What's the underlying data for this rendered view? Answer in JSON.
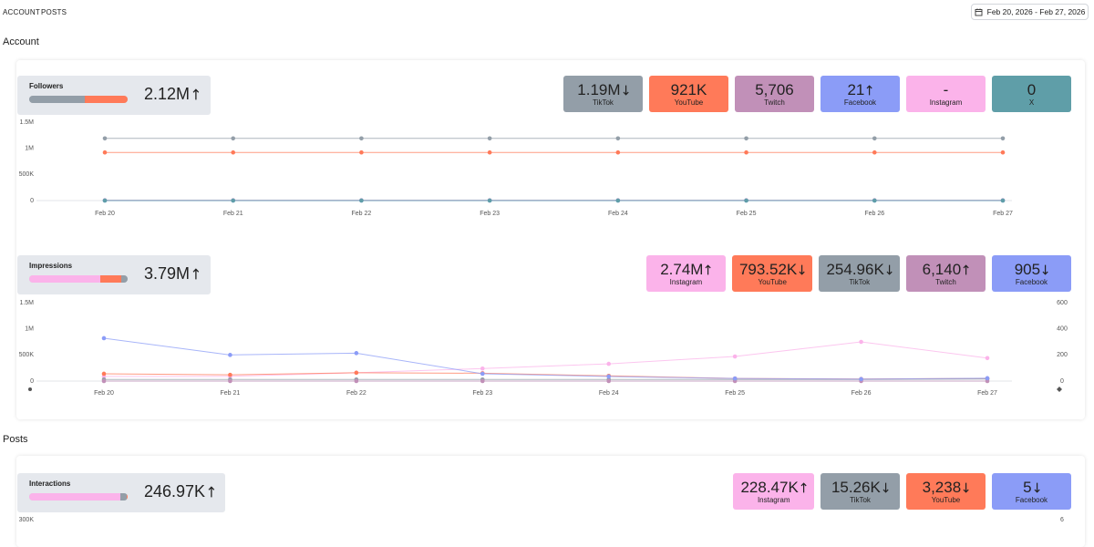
{
  "nav": {
    "tabs": [
      "ACCOUNT",
      "POSTS"
    ],
    "date_range": "Feb 20, 2026 - Feb 27, 2026"
  },
  "sections": [
    {
      "title": "Account",
      "panels": [
        {
          "metric": "Followers",
          "total": "2.12M",
          "trend": "up",
          "tiles": [
            {
              "platform": "TikTok",
              "value": 1190000,
              "label": "1.19M",
              "trend": "down",
              "color": "#939ea8",
              "values": [
                1190000,
                1190000,
                1190000,
                1190000,
                1190000,
                1190000,
                1190000,
                1190000
              ]
            },
            {
              "platform": "YouTube",
              "value": 921000,
              "label": "921K",
              "color": "#ff7a59",
              "values": [
                921000,
                921000,
                921000,
                921000,
                921000,
                921000,
                921000,
                921000
              ]
            },
            {
              "platform": "Twitch",
              "value": 5706,
              "label": "5,706",
              "color": "#c190b8",
              "values": [
                5706,
                5706,
                5706,
                5706,
                5706,
                5706,
                5706,
                5706
              ]
            },
            {
              "platform": "Facebook",
              "value": 21,
              "trend": "up",
              "color": "#8b9cf7",
              "values": [
                21,
                21,
                21,
                21,
                21,
                21,
                21,
                21
              ]
            },
            {
              "platform": "Instagram",
              "value": null,
              "label": "-",
              "color": "#fbb3ea"
            },
            {
              "platform": "X",
              "value": 0,
              "color": "#5f9ea8",
              "values": [
                0,
                0,
                0,
                0,
                0,
                0,
                0,
                0
              ]
            }
          ],
          "chart": {
            "type": "line",
            "x": [
              "Feb 20",
              "Feb 21",
              "Feb 22",
              "Feb 23",
              "Feb 24",
              "Feb 25",
              "Feb 26",
              "Feb 27"
            ],
            "ylim": [
              0,
              1500000
            ],
            "yticks": [
              0,
              {
                "value": 500000,
                "label": "500K"
              },
              {
                "value": 1000000,
                "label": "1M"
              },
              {
                "value": 1500000,
                "label": "1.5M"
              }
            ]
          }
        },
        {
          "metric": "Impressions",
          "total": "3.79M",
          "trend": "up",
          "tiles": [
            {
              "platform": "Instagram",
              "value": 2740000,
              "label": "2.74M",
              "trend": "up",
              "color": "#fbb3ea",
              "values": [
                90000,
                90000,
                160000,
                240000,
                330000,
                470000,
                750000,
                440000
              ]
            },
            {
              "platform": "YouTube",
              "value": 793520,
              "label": "793.52K",
              "trend": "down",
              "color": "#ff7a59",
              "values": [
                140000,
                120000,
                160000,
                150000,
                100000,
                50000,
                40000,
                50000
              ]
            },
            {
              "platform": "TikTok",
              "value": 254960,
              "label": "254.96K",
              "trend": "down",
              "color": "#939ea8",
              "values": [
                30000,
                30000,
                30000,
                30000,
                30000,
                30000,
                30000,
                40000
              ]
            },
            {
              "platform": "Twitch",
              "value": 6140,
              "label": "6,140",
              "trend": "up",
              "color": "#c190b8",
              "values": [
                800,
                700,
                800,
                800,
                700,
                800,
                800,
                700
              ]
            },
            {
              "platform": "Facebook",
              "value": 905,
              "trend": "down",
              "color": "#8b9cf7",
              "axis": "y2",
              "values": [
                328,
                200,
                214,
                56,
                35,
                20,
                15,
                22
              ]
            }
          ],
          "chart": {
            "type": "line",
            "x": [
              "Feb 20",
              "Feb 21",
              "Feb 22",
              "Feb 23",
              "Feb 24",
              "Feb 25",
              "Feb 26",
              "Feb 27"
            ],
            "ylim": [
              0,
              1500000
            ],
            "yticks": [
              0,
              {
                "value": 500000,
                "label": "500K"
              },
              {
                "value": 1000000,
                "label": "1M"
              },
              {
                "value": 1500000,
                "label": "1.5M"
              }
            ],
            "y2lim": [
              0,
              600
            ],
            "y2ticks": [
              0,
              200,
              400,
              600
            ]
          }
        }
      ]
    },
    {
      "title": "Posts",
      "panels": [
        {
          "metric": "Interactions",
          "total": "246.97K",
          "trend": "up",
          "tiles": [
            {
              "platform": "Instagram",
              "value": 228470,
              "label": "228.47K",
              "trend": "up",
              "color": "#fbb3ea"
            },
            {
              "platform": "TikTok",
              "value": 15260,
              "label": "15.26K",
              "trend": "down",
              "color": "#939ea8"
            },
            {
              "platform": "YouTube",
              "value": 3238,
              "label": "3,238",
              "trend": "down",
              "color": "#ff7a59"
            },
            {
              "platform": "Facebook",
              "value": 5,
              "trend": "down",
              "color": "#8b9cf7"
            }
          ],
          "chart": {
            "type": "line",
            "ylim": [
              0,
              300000
            ],
            "yticks": [
              {
                "value": 300000,
                "label": "300K"
              }
            ],
            "y2lim": [
              0,
              6
            ],
            "y2ticks": [
              6
            ]
          }
        }
      ]
    }
  ]
}
